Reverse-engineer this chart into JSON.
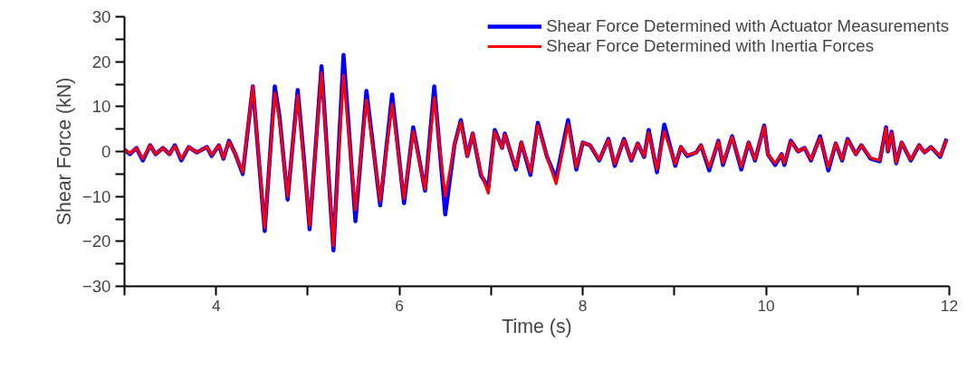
{
  "chart_data": {
    "type": "line",
    "xlabel": "Time (s)",
    "ylabel": "Shear Force (kN)",
    "xlim": [
      3,
      12
    ],
    "ylim": [
      -30,
      30
    ],
    "xticks": [
      {
        "value": 3,
        "label": null
      },
      4,
      {
        "value": 5,
        "label": null
      },
      6,
      {
        "value": 7,
        "label": null
      },
      8,
      {
        "value": 9,
        "label": null
      },
      10,
      {
        "value": 11,
        "label": null
      },
      12
    ],
    "yticks": [
      -30,
      {
        "value": -25,
        "label": null
      },
      -20,
      {
        "value": -15,
        "label": null
      },
      -10,
      {
        "value": -5,
        "label": null
      },
      0,
      {
        "value": 5,
        "label": null
      },
      10,
      {
        "value": 15,
        "label": null
      },
      20,
      {
        "value": 25,
        "label": null
      },
      30
    ],
    "grid": false,
    "legend": "top right",
    "marker": "none",
    "line_style": "solid",
    "x": [
      3.0,
      3.06,
      3.13,
      3.2,
      3.28,
      3.34,
      3.42,
      3.49,
      3.55,
      3.62,
      3.7,
      3.79,
      3.9,
      3.95,
      4.03,
      4.08,
      4.14,
      4.21,
      4.29,
      4.4,
      4.53,
      4.64,
      4.69,
      4.78,
      4.89,
      4.96,
      5.02,
      5.15,
      5.28,
      5.39,
      5.52,
      5.64,
      5.79,
      5.92,
      6.05,
      6.15,
      6.28,
      6.38,
      6.5,
      6.6,
      6.67,
      6.74,
      6.8,
      6.89,
      6.97,
      7.04,
      7.12,
      7.15,
      7.27,
      7.33,
      7.43,
      7.51,
      7.61,
      7.71,
      7.84,
      7.93,
      8.0,
      8.08,
      8.18,
      8.28,
      8.35,
      8.45,
      8.53,
      8.6,
      8.67,
      8.72,
      8.81,
      8.89,
      9.01,
      9.07,
      9.14,
      9.24,
      9.29,
      9.38,
      9.48,
      9.53,
      9.63,
      9.73,
      9.81,
      9.88,
      9.98,
      10.02,
      10.1,
      10.17,
      10.2,
      10.27,
      10.35,
      10.42,
      10.49,
      10.59,
      10.68,
      10.76,
      10.83,
      10.89,
      10.98,
      11.04,
      11.14,
      11.24,
      11.31,
      11.33,
      11.37,
      11.42,
      11.48,
      11.58,
      11.67,
      11.73,
      11.8,
      11.9,
      11.97
    ],
    "series": [
      {
        "name": "Shear Force Determined with Actuator Measurements",
        "color": "#0000ff",
        "values": [
          0.4,
          -0.6,
          0.8,
          -2,
          1.4,
          -0.6,
          0.8,
          -0.6,
          1.4,
          -2,
          1,
          -0.2,
          1,
          -1,
          1.4,
          -1.6,
          2.4,
          -0.6,
          -5,
          14.5,
          -17.7,
          14.5,
          8,
          -10.7,
          13.7,
          -2,
          -17.3,
          19,
          -22,
          21.5,
          -15.5,
          13.5,
          -12,
          12.7,
          -11.5,
          5.4,
          -8.7,
          14.5,
          -14,
          1.4,
          7,
          -1,
          4,
          -5.3,
          -8,
          4.8,
          0.8,
          4,
          -4,
          2,
          -5.2,
          6.4,
          -1.2,
          -6,
          7,
          -4,
          2,
          1.4,
          -2,
          2.8,
          -3.2,
          2.8,
          -2,
          1.8,
          -1.2,
          4.8,
          -4.6,
          6,
          -3.2,
          1,
          -1,
          -0.2,
          1.4,
          -4.2,
          2.4,
          -3,
          3.4,
          -4,
          2,
          -2,
          5.8,
          -0.6,
          -3,
          -0.6,
          -3,
          2.4,
          0,
          0.8,
          -2,
          3.4,
          -4.2,
          1.8,
          -2,
          2.8,
          -0.6,
          1.4,
          -1.6,
          -2.2,
          5.4,
          0,
          4.4,
          -2.6,
          2,
          -2,
          1.4,
          -0.2,
          1,
          -1.2,
          2.8
        ]
      },
      {
        "name": "Shear Force Determined with Inertia Forces",
        "color": "#ff0000",
        "values": [
          0.4,
          -0.4,
          0.8,
          -1.6,
          1.4,
          -0.6,
          0.8,
          -0.6,
          1.2,
          -1.6,
          1,
          -0.2,
          1,
          -0.8,
          1.4,
          -1.4,
          2.2,
          -0.6,
          -4.6,
          14.5,
          -17,
          13,
          7,
          -10,
          12.5,
          -3,
          -16.5,
          17.5,
          -21,
          17,
          -13,
          11.5,
          -11,
          10.5,
          -10.5,
          4.5,
          -8.4,
          12,
          -10,
          1.4,
          6.5,
          -1,
          4,
          -4.8,
          -9.3,
          4.4,
          0.8,
          3.8,
          -3.6,
          2,
          -4.6,
          5.8,
          -1.2,
          -7.2,
          6,
          -3.5,
          2,
          1.4,
          -1.8,
          2.6,
          -2.8,
          2.6,
          -1.8,
          1.8,
          -1,
          4.2,
          -4,
          4.5,
          -2.8,
          1,
          -0.8,
          -0.2,
          1.4,
          -3.5,
          2.2,
          -2.6,
          3.2,
          -3.4,
          2,
          -1.8,
          5.6,
          -0.6,
          -2.6,
          -0.6,
          -2.6,
          2.2,
          0,
          0.8,
          -1.8,
          3,
          -3.5,
          1.8,
          -1.8,
          2.6,
          -0.6,
          1.4,
          -1.4,
          -2,
          5.2,
          0,
          4.2,
          -2.4,
          2,
          -1.8,
          1.4,
          -0.2,
          1,
          -1,
          2.6
        ]
      }
    ]
  }
}
